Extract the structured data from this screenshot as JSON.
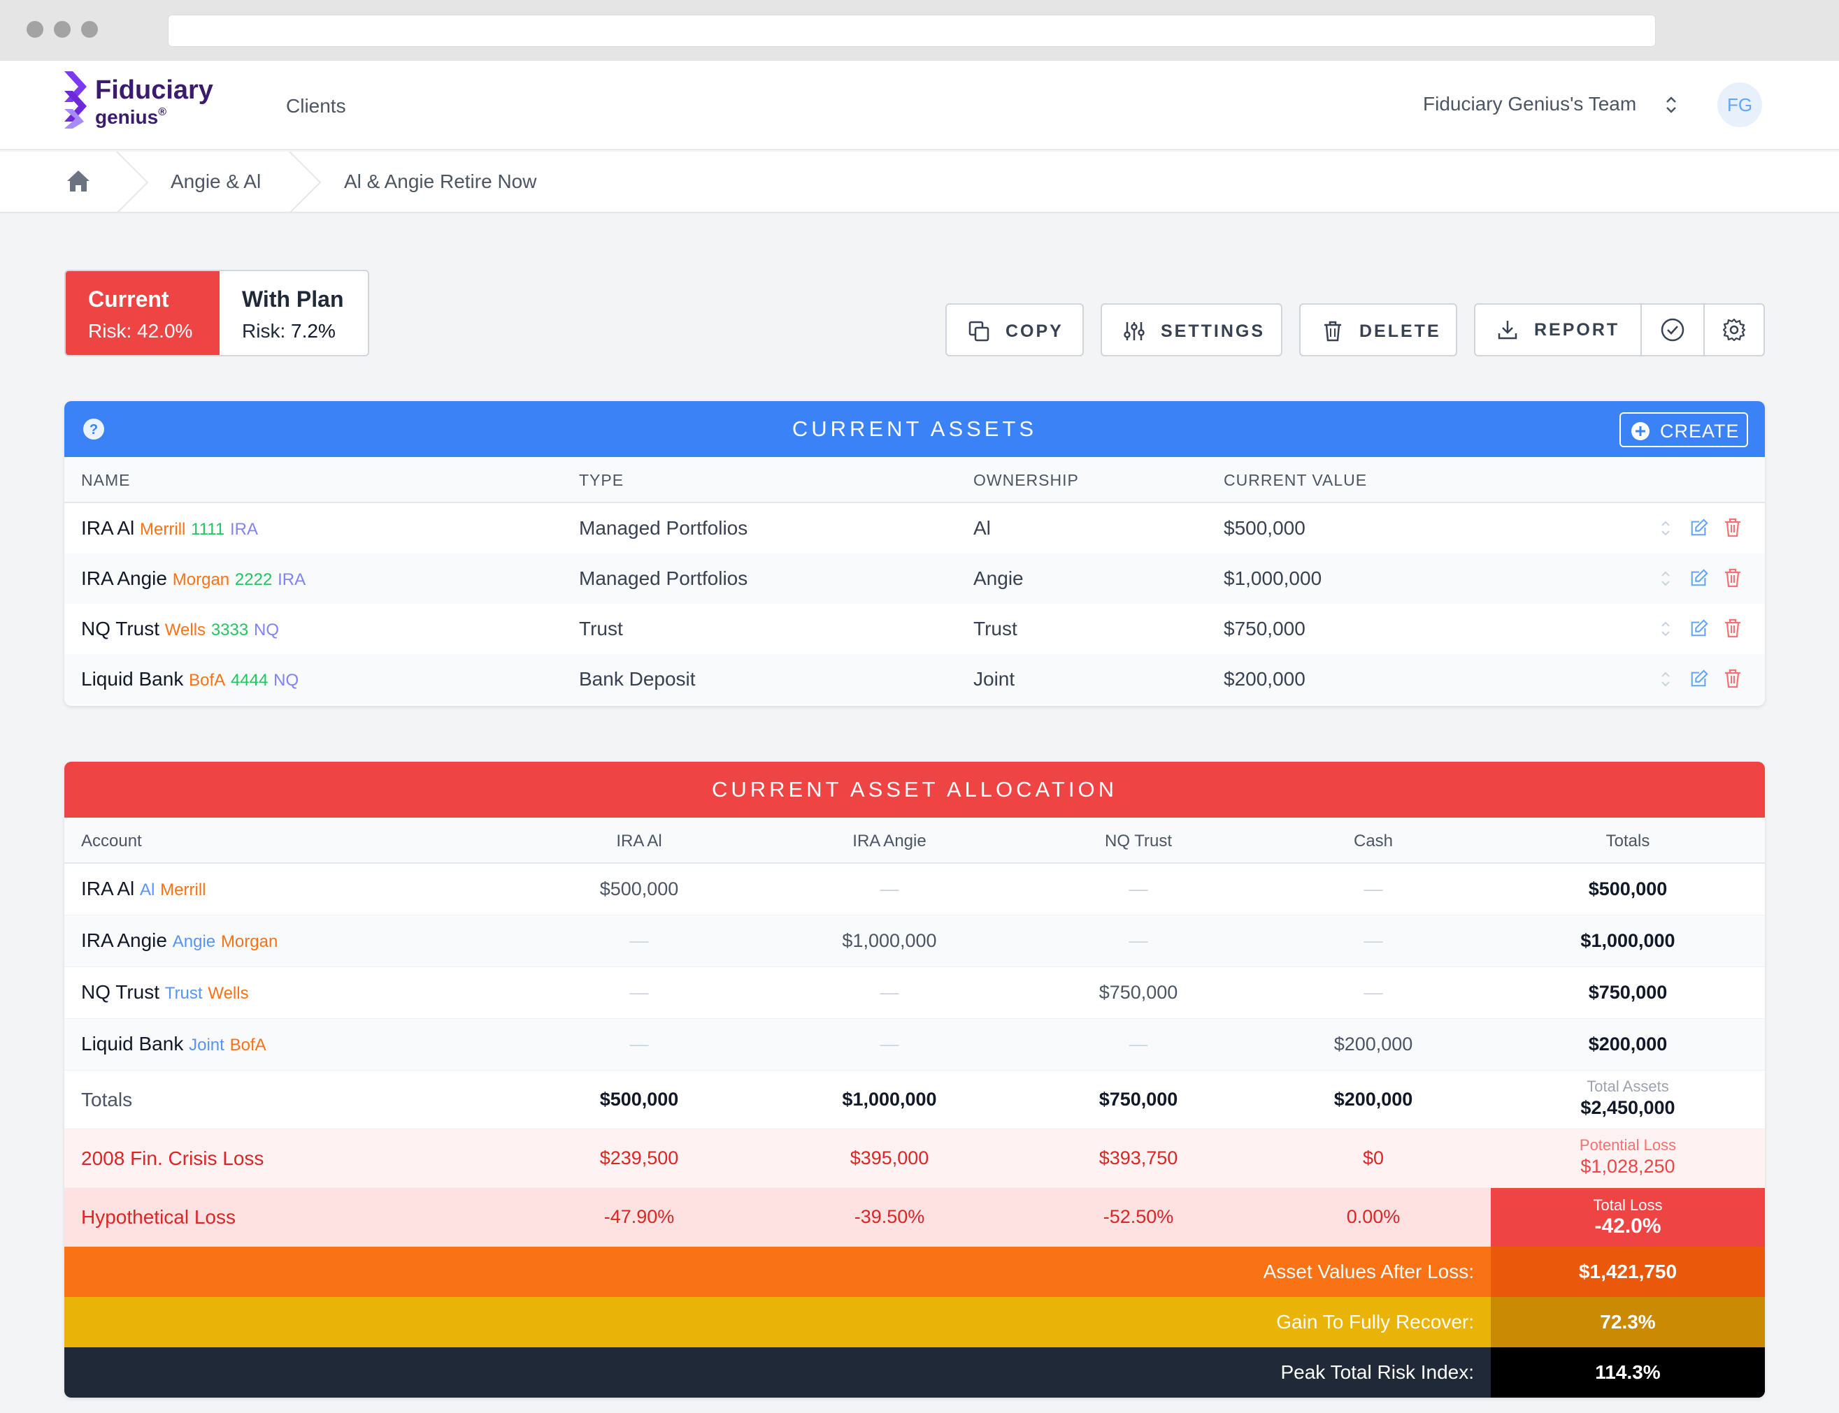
{
  "app": {
    "brand_line1": "Fiduciary",
    "brand_line2": "genius",
    "brand_mark": "®"
  },
  "nav": {
    "clients": "Clients",
    "team": "Fiduciary Genius's Team",
    "avatar": "FG"
  },
  "breadcrumb": {
    "items": [
      "Angie & Al",
      "Al & Angie Retire Now"
    ]
  },
  "toggle": {
    "current": {
      "title": "Current",
      "risk_label": "Risk:",
      "risk_value": "42.0%"
    },
    "with_plan": {
      "title": "With Plan",
      "risk_label": "Risk:",
      "risk_value": "7.2%"
    }
  },
  "actions": {
    "copy": "COPY",
    "settings": "SETTINGS",
    "delete": "DELETE",
    "report": "REPORT"
  },
  "assets": {
    "title": "CURRENT ASSETS",
    "create": "CREATE",
    "headers": [
      "NAME",
      "TYPE",
      "OWNERSHIP",
      "CURRENT VALUE"
    ],
    "rows": [
      {
        "name": "IRA Al",
        "custodian": "Merrill",
        "acct": "1111",
        "tag": "IRA",
        "type": "Managed Portfolios",
        "ownership": "Al",
        "value": "$500,000"
      },
      {
        "name": "IRA Angie",
        "custodian": "Morgan",
        "acct": "2222",
        "tag": "IRA",
        "type": "Managed Portfolios",
        "ownership": "Angie",
        "value": "$1,000,000"
      },
      {
        "name": "NQ Trust",
        "custodian": "Wells",
        "acct": "3333",
        "tag": "NQ",
        "type": "Trust",
        "ownership": "Trust",
        "value": "$750,000"
      },
      {
        "name": "Liquid Bank",
        "custodian": "BofA",
        "acct": "4444",
        "tag": "NQ",
        "type": "Bank Deposit",
        "ownership": "Joint",
        "value": "$200,000"
      }
    ]
  },
  "allocation": {
    "title": "CURRENT ASSET ALLOCATION",
    "headers": [
      "Account",
      "IRA Al",
      "IRA Angie",
      "NQ Trust",
      "Cash",
      "Totals"
    ],
    "rows": [
      {
        "name": "IRA Al",
        "owner": "Al",
        "custodian": "Merrill",
        "cols": [
          "$500,000",
          "—",
          "—",
          "—"
        ],
        "total": "$500,000"
      },
      {
        "name": "IRA Angie",
        "owner": "Angie",
        "custodian": "Morgan",
        "cols": [
          "—",
          "$1,000,000",
          "—",
          "—"
        ],
        "total": "$1,000,000"
      },
      {
        "name": "NQ Trust",
        "owner": "Trust",
        "custodian": "Wells",
        "cols": [
          "—",
          "—",
          "$750,000",
          "—"
        ],
        "total": "$750,000"
      },
      {
        "name": "Liquid Bank",
        "owner": "Joint",
        "custodian": "BofA",
        "cols": [
          "—",
          "—",
          "—",
          "$200,000"
        ],
        "total": "$200,000"
      }
    ],
    "totals": {
      "label": "Totals",
      "cols": [
        "$500,000",
        "$1,000,000",
        "$750,000",
        "$200,000"
      ],
      "total_label": "Total Assets",
      "total_value": "$2,450,000"
    },
    "crisis": {
      "label": "2008 Fin. Crisis Loss",
      "cols": [
        "$239,500",
        "$395,000",
        "$393,750",
        "$0"
      ],
      "total_label": "Potential Loss",
      "total_value": "$1,028,250"
    },
    "hypothetical": {
      "label": "Hypothetical Loss",
      "cols": [
        "-47.90%",
        "-39.50%",
        "-52.50%",
        "0.00%"
      ],
      "total_label": "Total Loss",
      "total_value": "-42.0%"
    },
    "after_loss": {
      "label": "Asset Values After Loss:",
      "value": "$1,421,750"
    },
    "recover": {
      "label": "Gain To Fully Recover:",
      "value": "72.3%"
    },
    "peak": {
      "label": "Peak Total Risk Index:",
      "value": "114.3%"
    }
  },
  "colors": {
    "red": "#ef4444",
    "blue": "#3b82f6",
    "orange": "#f97316",
    "orange_dark": "#ea580c",
    "gold": "#eab308",
    "gold_dark": "#ca8a04",
    "navy": "#1f2937"
  }
}
